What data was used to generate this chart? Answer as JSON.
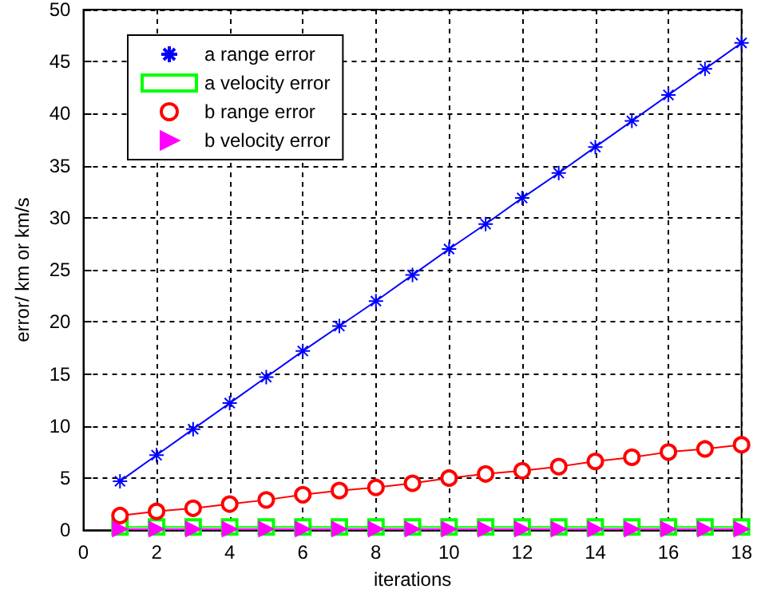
{
  "chart_data": {
    "type": "line",
    "xlabel": "iterations",
    "ylabel": "error/ km or km/s",
    "x": [
      1,
      2,
      3,
      4,
      5,
      6,
      7,
      8,
      9,
      10,
      11,
      12,
      13,
      14,
      15,
      16,
      17,
      18
    ],
    "series": [
      {
        "name": "a range error",
        "color": "#0000ff",
        "marker": "cross",
        "values": [
          4.7,
          7.2,
          9.7,
          12.2,
          14.7,
          17.2,
          19.6,
          22.0,
          24.5,
          27.0,
          29.4,
          31.9,
          34.3,
          36.8,
          39.3,
          41.8,
          44.3,
          46.8
        ]
      },
      {
        "name": "a velocity error",
        "color": "#00ff00",
        "marker": "square",
        "values": [
          0.3,
          0.3,
          0.3,
          0.3,
          0.3,
          0.3,
          0.3,
          0.3,
          0.3,
          0.3,
          0.3,
          0.3,
          0.3,
          0.3,
          0.3,
          0.3,
          0.3,
          0.3
        ]
      },
      {
        "name": "b range error",
        "color": "#ff0000",
        "marker": "circle",
        "values": [
          1.4,
          1.8,
          2.1,
          2.5,
          2.9,
          3.4,
          3.8,
          4.1,
          4.5,
          5.0,
          5.4,
          5.7,
          6.1,
          6.6,
          7.0,
          7.5,
          7.8,
          8.2
        ]
      },
      {
        "name": "b velocity error",
        "color": "#ff00ff",
        "marker": "triangle",
        "values": [
          0.1,
          0.1,
          0.1,
          0.1,
          0.1,
          0.1,
          0.1,
          0.1,
          0.1,
          0.1,
          0.1,
          0.1,
          0.1,
          0.1,
          0.1,
          0.1,
          0.1,
          0.1
        ]
      }
    ],
    "xlim": [
      0,
      18
    ],
    "xticks": [
      0,
      2,
      4,
      6,
      8,
      10,
      12,
      14,
      16,
      18
    ],
    "ylim": [
      0,
      50
    ],
    "yticks": [
      0,
      5,
      10,
      15,
      20,
      25,
      30,
      35,
      40,
      45,
      50
    ],
    "grid": true,
    "legend": "top left",
    "line_style": "solid"
  }
}
